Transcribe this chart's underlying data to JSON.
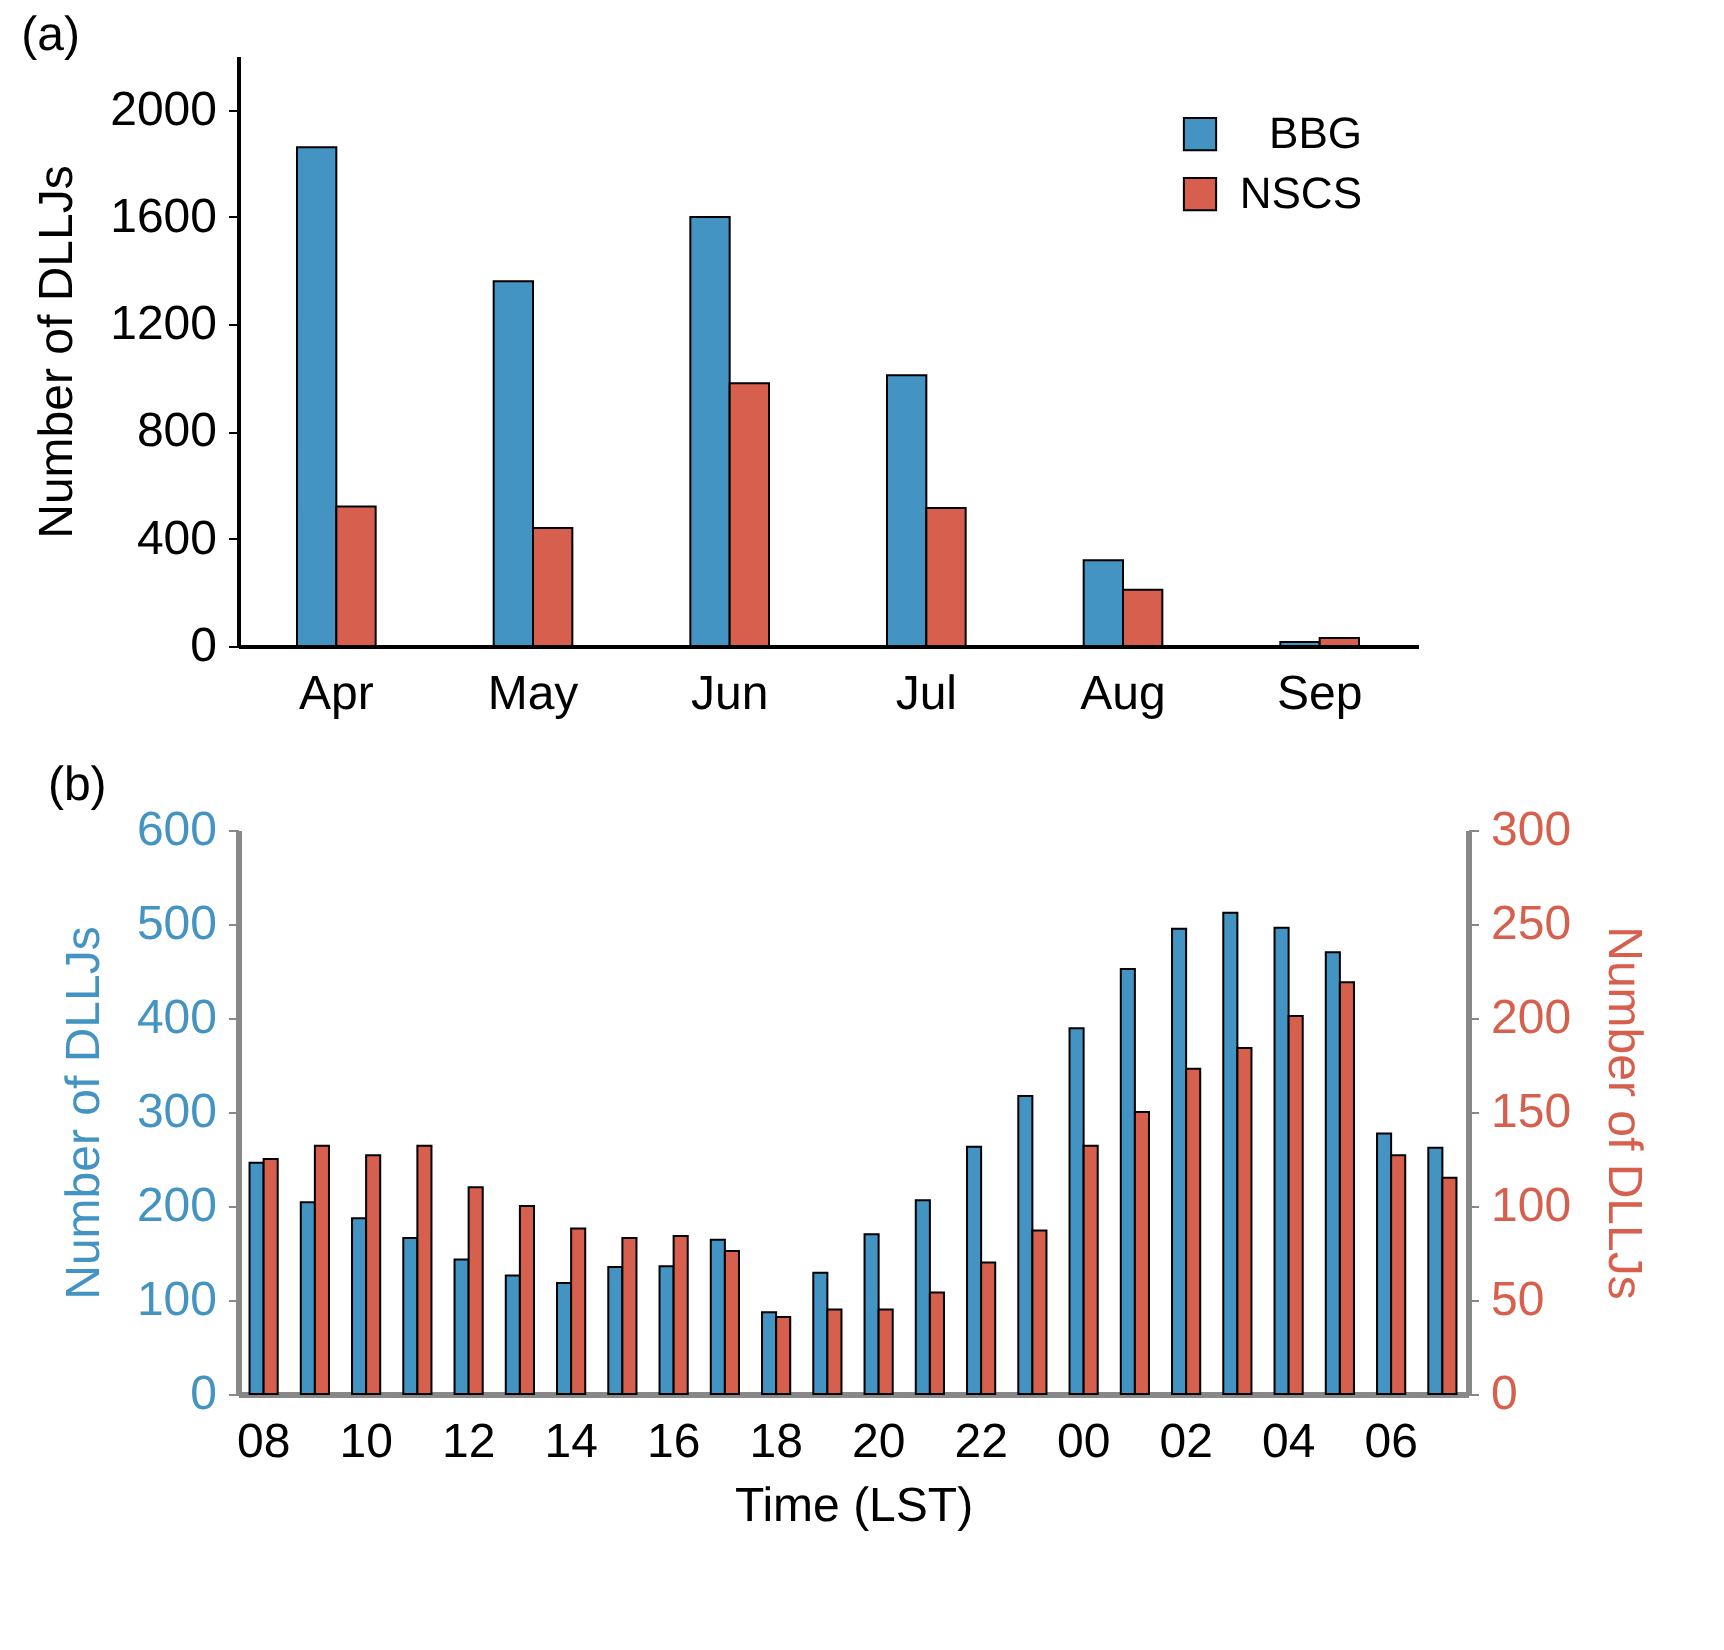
{
  "chart_data": [
    {
      "type": "bar",
      "title": "(a)",
      "ylabel": "Number of DLLJs",
      "categories": [
        "Apr",
        "May",
        "Jun",
        "Jul",
        "Aug",
        "Sep"
      ],
      "ylim": [
        0,
        2200
      ],
      "yticks": [
        0,
        400,
        800,
        1200,
        1600,
        2000
      ],
      "legend": "top right",
      "series": [
        {
          "name": "BBG",
          "color": "#4393c3",
          "values": [
            1860,
            1360,
            1600,
            1010,
            320,
            15
          ]
        },
        {
          "name": "NSCS",
          "color": "#d6604d",
          "values": [
            520,
            440,
            980,
            515,
            210,
            30
          ]
        }
      ]
    },
    {
      "type": "bar",
      "title": "(b)",
      "xlabel": "Time (LST)",
      "ylabel": "Number of DLLJs",
      "y2label": "Number of DLLJs",
      "categories": [
        "08",
        null,
        "10",
        null,
        "12",
        null,
        "14",
        null,
        "16",
        null,
        "18",
        null,
        "20",
        null,
        "22",
        null,
        "00",
        null,
        "02",
        null,
        "04",
        null,
        "06",
        null
      ],
      "ylim": [
        0,
        600
      ],
      "yticks": [
        0,
        100,
        200,
        300,
        400,
        500,
        600
      ],
      "y2lim": [
        0,
        300
      ],
      "y2ticks": [
        0,
        50,
        100,
        150,
        200,
        250,
        300
      ],
      "series": [
        {
          "color": "#4393c3",
          "values": [
            246,
            204,
            187,
            166,
            143,
            126,
            118,
            135,
            136,
            164,
            87,
            129,
            170,
            206,
            263,
            317,
            389,
            452,
            495,
            512,
            496,
            470,
            277,
            262
          ]
        },
        {
          "color": "#d6604d",
          "axis": "y2",
          "values": [
            125,
            132,
            127,
            132,
            110,
            100,
            88,
            83,
            84,
            76,
            41,
            45,
            45,
            54,
            70,
            87,
            132,
            150,
            173,
            184,
            201,
            219,
            127,
            115
          ]
        }
      ]
    }
  ]
}
